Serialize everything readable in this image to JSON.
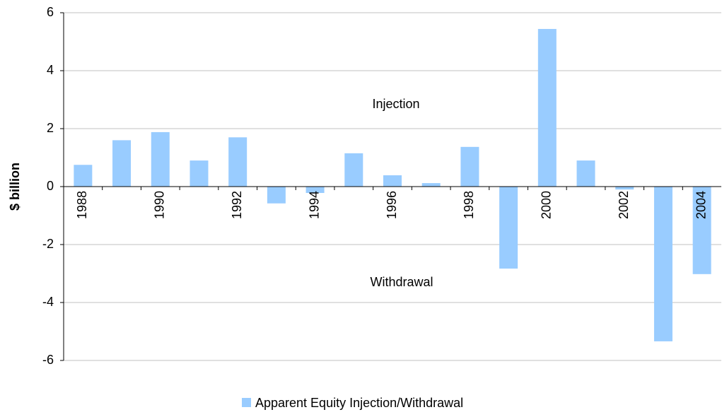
{
  "chart_data": {
    "type": "bar",
    "y_label": "$ billion",
    "annotations": [
      "Injection",
      "Withdrawal"
    ],
    "categories": [
      "1988",
      null,
      "1990",
      null,
      "1992",
      null,
      "1994",
      null,
      "1996",
      null,
      "1998",
      null,
      "2000",
      null,
      "2002",
      null,
      "2004"
    ],
    "series": [
      {
        "name": "Apparent Equity Injection/Withdrawal",
        "color": "#99ccff",
        "values": [
          0.75,
          1.6,
          1.88,
          0.9,
          1.7,
          -0.58,
          -0.22,
          1.15,
          0.39,
          0.12,
          1.37,
          -2.83,
          5.44,
          0.9,
          -0.1,
          -5.34,
          -3.02
        ]
      }
    ],
    "ylim": [
      -6,
      6
    ],
    "yticks": [
      -6,
      -4,
      -2,
      0,
      2,
      4,
      6
    ],
    "grid": true,
    "legend": "bottom"
  }
}
